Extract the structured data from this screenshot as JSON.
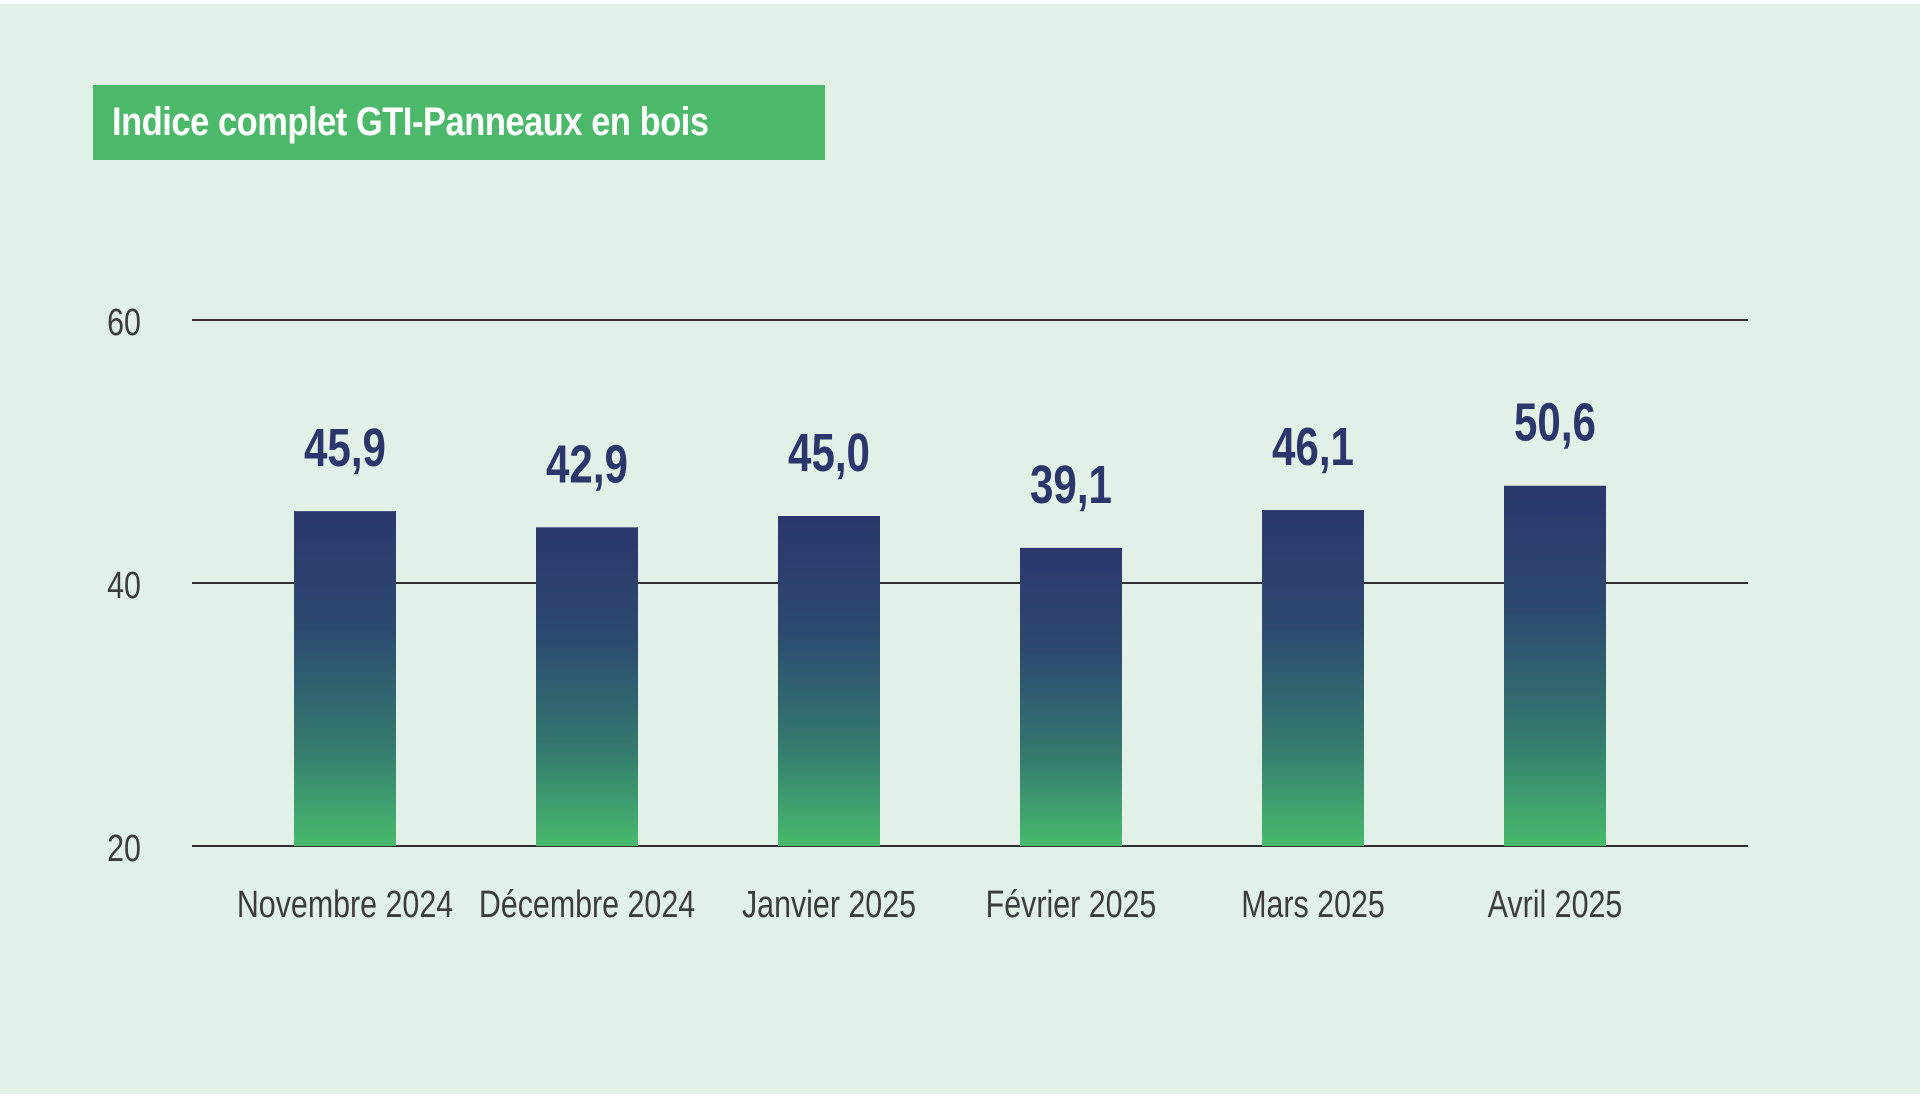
{
  "chart_data": {
    "type": "bar",
    "title": "Indice complet GTI-Panneaux en bois",
    "categories": [
      "Novembre 2024",
      "Décembre 2024",
      "Janvier 2025",
      "Février 2025",
      "Mars 2025",
      "Avril 2025"
    ],
    "values": [
      45.9,
      42.9,
      45.0,
      39.1,
      46.1,
      50.6
    ],
    "value_labels": [
      "45,9",
      "42,9",
      "45,0",
      "39,1",
      "46,1",
      "50,6"
    ],
    "yticks": [
      "20",
      "40",
      "60"
    ],
    "ytick_values": [
      20,
      40,
      60
    ],
    "ylim": [
      20,
      60
    ],
    "xlabel": "",
    "ylabel": "",
    "grid": true,
    "colors": {
      "background": "#e1f1e7",
      "title_box": "#4cb96a",
      "title_text": "#ffffff",
      "bar_top": "#2b376c",
      "bar_bottom": "#47ba6c",
      "value_label": "#2b376c",
      "axis_text": "#3c3c3c",
      "gridline": "#2f2f2f"
    }
  }
}
